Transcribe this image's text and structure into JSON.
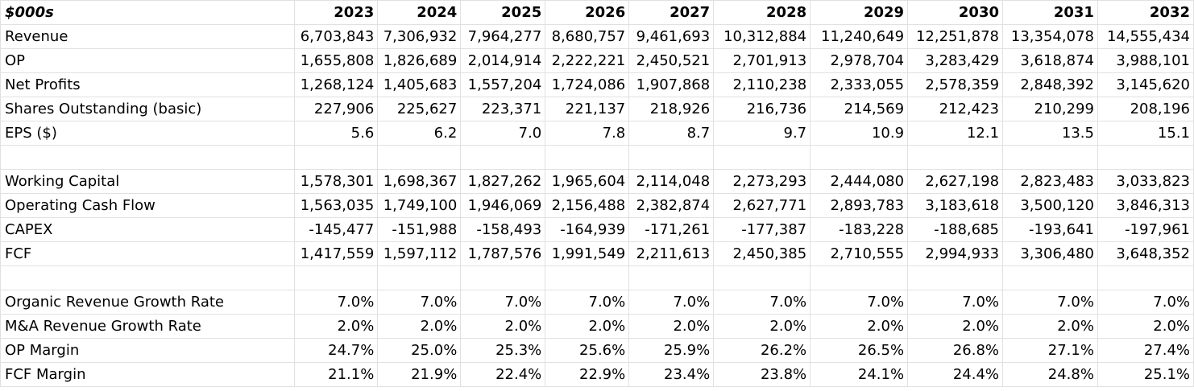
{
  "sheet": {
    "header": {
      "unit": "$000s",
      "years": [
        "2023",
        "2024",
        "2025",
        "2026",
        "2027",
        "2028",
        "2029",
        "2030",
        "2031",
        "2032"
      ]
    },
    "rows": [
      {
        "label": "Revenue",
        "values": [
          "6,703,843",
          "7,306,932",
          "7,964,277",
          "8,680,757",
          "9,461,693",
          "10,312,884",
          "11,240,649",
          "12,251,878",
          "13,354,078",
          "14,555,434"
        ]
      },
      {
        "label": "OP",
        "values": [
          "1,655,808",
          "1,826,689",
          "2,014,914",
          "2,222,221",
          "2,450,521",
          "2,701,913",
          "2,978,704",
          "3,283,429",
          "3,618,874",
          "3,988,101"
        ]
      },
      {
        "label": "Net Profits",
        "values": [
          "1,268,124",
          "1,405,683",
          "1,557,204",
          "1,724,086",
          "1,907,868",
          "2,110,238",
          "2,333,055",
          "2,578,359",
          "2,848,392",
          "3,145,620"
        ]
      },
      {
        "label": "Shares Outstanding (basic)",
        "values": [
          "227,906",
          "225,627",
          "223,371",
          "221,137",
          "218,926",
          "216,736",
          "214,569",
          "212,423",
          "210,299",
          "208,196"
        ]
      },
      {
        "label": "EPS ($)",
        "values": [
          "5.6",
          "6.2",
          "7.0",
          "7.8",
          "8.7",
          "9.7",
          "10.9",
          "12.1",
          "13.5",
          "15.1"
        ]
      },
      {
        "label": "",
        "values": [
          "",
          "",
          "",
          "",
          "",
          "",
          "",
          "",
          "",
          ""
        ]
      },
      {
        "label": "Working Capital",
        "values": [
          "1,578,301",
          "1,698,367",
          "1,827,262",
          "1,965,604",
          "2,114,048",
          "2,273,293",
          "2,444,080",
          "2,627,198",
          "2,823,483",
          "3,033,823"
        ]
      },
      {
        "label": "Operating Cash Flow",
        "values": [
          "1,563,035",
          "1,749,100",
          "1,946,069",
          "2,156,488",
          "2,382,874",
          "2,627,771",
          "2,893,783",
          "3,183,618",
          "3,500,120",
          "3,846,313"
        ]
      },
      {
        "label": "CAPEX",
        "values": [
          "-145,477",
          "-151,988",
          "-158,493",
          "-164,939",
          "-171,261",
          "-177,387",
          "-183,228",
          "-188,685",
          "-193,641",
          "-197,961"
        ]
      },
      {
        "label": "FCF",
        "values": [
          "1,417,559",
          "1,597,112",
          "1,787,576",
          "1,991,549",
          "2,211,613",
          "2,450,385",
          "2,710,555",
          "2,994,933",
          "3,306,480",
          "3,648,352"
        ]
      },
      {
        "label": "",
        "values": [
          "",
          "",
          "",
          "",
          "",
          "",
          "",
          "",
          "",
          ""
        ]
      },
      {
        "label": "Organic Revenue Growth Rate",
        "values": [
          "7.0%",
          "7.0%",
          "7.0%",
          "7.0%",
          "7.0%",
          "7.0%",
          "7.0%",
          "7.0%",
          "7.0%",
          "7.0%"
        ]
      },
      {
        "label": "M&A Revenue Growth Rate",
        "values": [
          "2.0%",
          "2.0%",
          "2.0%",
          "2.0%",
          "2.0%",
          "2.0%",
          "2.0%",
          "2.0%",
          "2.0%",
          "2.0%"
        ]
      },
      {
        "label": "OP Margin",
        "values": [
          "24.7%",
          "25.0%",
          "25.3%",
          "25.6%",
          "25.9%",
          "26.2%",
          "26.5%",
          "26.8%",
          "27.1%",
          "27.4%"
        ]
      },
      {
        "label": "FCF Margin",
        "values": [
          "21.1%",
          "21.9%",
          "22.4%",
          "22.9%",
          "23.4%",
          "23.8%",
          "24.1%",
          "24.4%",
          "24.8%",
          "25.1%"
        ]
      }
    ]
  }
}
